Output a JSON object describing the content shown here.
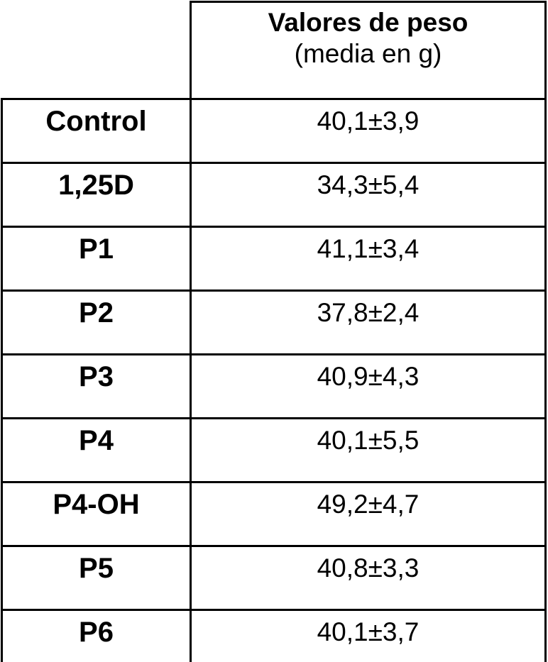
{
  "table": {
    "header": {
      "title": "Valores de peso",
      "subtitle": "(media en g)"
    },
    "rows": [
      [
        "Control",
        "40,1±3,9"
      ],
      [
        "1,25D",
        "34,3±5,4"
      ],
      [
        "P1",
        "41,1±3,4"
      ],
      [
        "P2",
        "37,8±2,4"
      ],
      [
        "P3",
        "40,9±4,3"
      ],
      [
        "P4",
        "40,1±5,5"
      ],
      [
        "P4-OH",
        "49,2±4,7"
      ],
      [
        "P5",
        "40,8±3,3"
      ],
      [
        "P6",
        "40,1±3,7"
      ]
    ]
  }
}
